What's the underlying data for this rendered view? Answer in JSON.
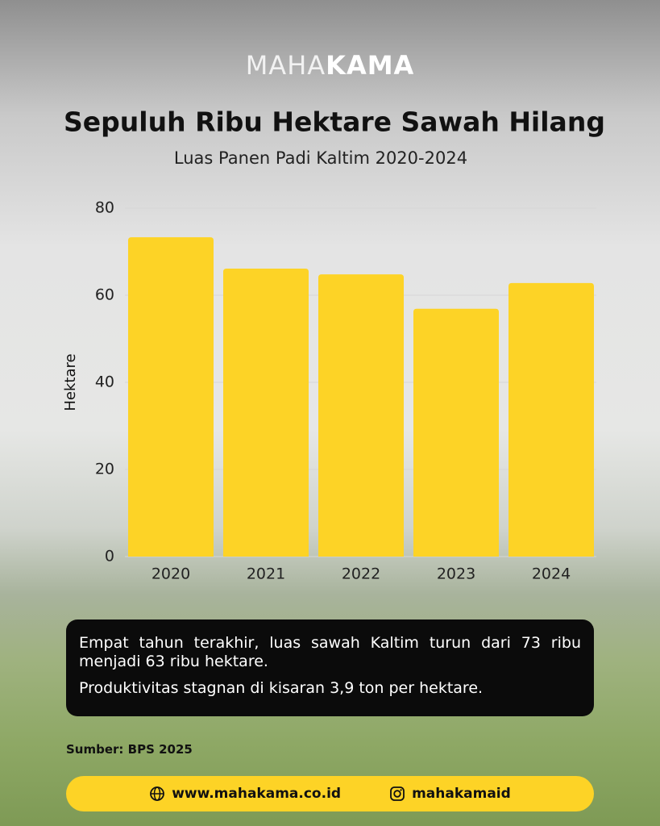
{
  "logo": {
    "light": "MAHA",
    "bold": "KAMA"
  },
  "chart_data": {
    "type": "bar",
    "title": "Sepuluh Ribu Hektare Sawah Hilang",
    "subtitle": "Luas Panen Padi Kaltim 2020-2024",
    "y_label": "Hektare",
    "categories": [
      "2020",
      "2021",
      "2022",
      "2023",
      "2024"
    ],
    "values": [
      73.3,
      66.1,
      64.8,
      56.9,
      62.8
    ],
    "color": "#fdd326",
    "ylim": [
      0,
      80
    ],
    "yticks": [
      0,
      20,
      40,
      60,
      80
    ],
    "grid": true
  },
  "note": [
    "Empat tahun terakhir, luas sawah Kaltim turun dari 73 ribu menjadi 63 ribu hektare.",
    "Produktivitas stagnan di kisaran 3,9 ton per hektare."
  ],
  "source": "Sumber: BPS 2025",
  "footer": {
    "website": "www.mahakama.co.id",
    "instagram": "mahakamaid"
  }
}
